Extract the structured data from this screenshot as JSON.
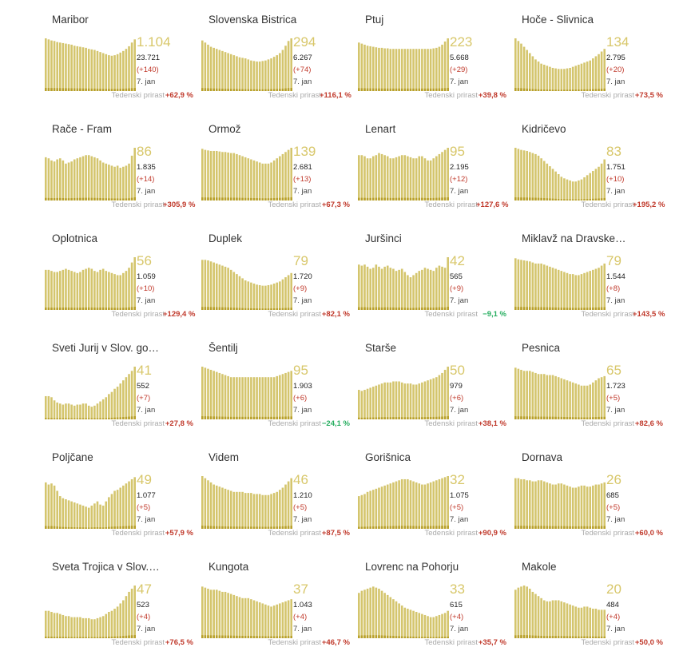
{
  "colors": {
    "bar": "#d4c56d",
    "bar_dark": "#b8a02a",
    "big": "#d8c76a",
    "pos": "#c0392b",
    "neg": "#27ae60"
  },
  "weekly_label": "Tedenski prirast",
  "chart_data": [
    {
      "type": "bar",
      "title": "Maribor",
      "big": "1.104",
      "total": "23.721",
      "delta": "(+140)",
      "date": "7. jan",
      "weekly": "+62,9 %",
      "weekly_sign": "pos",
      "values": [
        100,
        98,
        96,
        95,
        93,
        92,
        91,
        90,
        89,
        88,
        86,
        85,
        84,
        83,
        82,
        80,
        79,
        78,
        76,
        74,
        72,
        70,
        68,
        67,
        68,
        70,
        73,
        76,
        80,
        85,
        92,
        98
      ]
    },
    {
      "type": "bar",
      "title": "Slovenska Bistrica",
      "big": "294",
      "total": "6.267",
      "delta": "(+74)",
      "date": "7. jan",
      "weekly": "+116,1 %",
      "weekly_sign": "pos",
      "values": [
        96,
        92,
        88,
        84,
        82,
        80,
        78,
        76,
        74,
        72,
        70,
        68,
        66,
        64,
        63,
        62,
        60,
        58,
        57,
        56,
        56,
        57,
        58,
        60,
        62,
        65,
        68,
        72,
        78,
        86,
        95,
        100
      ]
    },
    {
      "type": "bar",
      "title": "Ptuj",
      "big": "223",
      "total": "5.668",
      "delta": "(+29)",
      "date": "7. jan",
      "weekly": "+39,8 %",
      "weekly_sign": "pos",
      "values": [
        92,
        90,
        88,
        86,
        85,
        84,
        83,
        82,
        82,
        81,
        81,
        80,
        80,
        80,
        80,
        80,
        80,
        80,
        80,
        80,
        80,
        80,
        80,
        80,
        80,
        80,
        81,
        82,
        84,
        88,
        94,
        100
      ]
    },
    {
      "type": "bar",
      "title": "Hoče - Slivnica",
      "big": "134",
      "total": "2.795",
      "delta": "(+20)",
      "date": "7. jan",
      "weekly": "+73,5 %",
      "weekly_sign": "pos",
      "values": [
        100,
        95,
        90,
        84,
        78,
        72,
        66,
        60,
        56,
        52,
        50,
        48,
        46,
        44,
        43,
        42,
        42,
        42,
        43,
        44,
        46,
        48,
        50,
        52,
        54,
        56,
        58,
        62,
        66,
        70,
        75,
        80
      ]
    },
    {
      "type": "bar",
      "title": "Rače - Fram",
      "big": "86",
      "total": "1.835",
      "delta": "(+14)",
      "date": "7. jan",
      "weekly": "+305,9 %",
      "weekly_sign": "pos",
      "values": [
        82,
        80,
        76,
        74,
        78,
        80,
        76,
        70,
        72,
        74,
        78,
        80,
        82,
        84,
        86,
        86,
        84,
        82,
        80,
        76,
        72,
        70,
        68,
        66,
        64,
        66,
        62,
        64,
        66,
        70,
        85,
        100
      ]
    },
    {
      "type": "bar",
      "title": "Ormož",
      "big": "139",
      "total": "2.681",
      "delta": "(+13)",
      "date": "7. jan",
      "weekly": "+67,3 %",
      "weekly_sign": "pos",
      "values": [
        98,
        96,
        95,
        94,
        94,
        94,
        93,
        92,
        92,
        91,
        90,
        90,
        88,
        86,
        84,
        82,
        80,
        78,
        76,
        74,
        72,
        70,
        70,
        70,
        72,
        76,
        80,
        84,
        88,
        92,
        96,
        100
      ]
    },
    {
      "type": "bar",
      "title": "Lenart",
      "big": "95",
      "total": "2.195",
      "delta": "(+12)",
      "date": "7. jan",
      "weekly": "+127,6 %",
      "weekly_sign": "pos",
      "values": [
        86,
        86,
        84,
        80,
        80,
        84,
        86,
        90,
        88,
        86,
        84,
        80,
        80,
        82,
        84,
        86,
        86,
        84,
        82,
        80,
        80,
        84,
        84,
        80,
        76,
        76,
        80,
        84,
        88,
        92,
        96,
        100
      ]
    },
    {
      "type": "bar",
      "title": "Kidričevo",
      "big": "83",
      "total": "1.751",
      "delta": "(+10)",
      "date": "7. jan",
      "weekly": "+195,2 %",
      "weekly_sign": "pos",
      "values": [
        100,
        98,
        96,
        95,
        94,
        92,
        90,
        88,
        85,
        80,
        75,
        70,
        65,
        60,
        55,
        50,
        45,
        42,
        40,
        38,
        36,
        36,
        38,
        40,
        44,
        48,
        52,
        56,
        60,
        64,
        70,
        78
      ]
    },
    {
      "type": "bar",
      "title": "Oplotnica",
      "big": "56",
      "total": "1.059",
      "delta": "(+10)",
      "date": "7. jan",
      "weekly": "+129,4 %",
      "weekly_sign": "pos",
      "values": [
        76,
        76,
        74,
        72,
        72,
        74,
        76,
        78,
        76,
        74,
        72,
        70,
        72,
        76,
        78,
        80,
        78,
        74,
        72,
        76,
        78,
        74,
        72,
        70,
        68,
        66,
        66,
        70,
        74,
        80,
        90,
        100
      ]
    },
    {
      "type": "bar",
      "title": "Duplek",
      "big": "79",
      "total": "1.720",
      "delta": "(+9)",
      "date": "7. jan",
      "weekly": "+82,1 %",
      "weekly_sign": "pos",
      "values": [
        95,
        95,
        94,
        92,
        90,
        88,
        86,
        84,
        82,
        80,
        76,
        72,
        68,
        64,
        60,
        56,
        54,
        52,
        50,
        48,
        47,
        46,
        46,
        47,
        48,
        50,
        52,
        54,
        58,
        62,
        66,
        70
      ]
    },
    {
      "type": "bar",
      "title": "Juršinci",
      "big": "42",
      "total": "565",
      "delta": "(+9)",
      "date": "7. jan",
      "weekly": "−9,1 %",
      "weekly_sign": "neg",
      "values": [
        86,
        84,
        86,
        82,
        78,
        80,
        86,
        82,
        78,
        82,
        84,
        80,
        78,
        74,
        76,
        78,
        72,
        66,
        62,
        66,
        70,
        74,
        76,
        80,
        78,
        76,
        74,
        80,
        84,
        82,
        80,
        100
      ]
    },
    {
      "type": "bar",
      "title": "Miklavž na Dravske…",
      "big": "79",
      "total": "1.544",
      "delta": "(+8)",
      "date": "7. jan",
      "weekly": "+143,5 %",
      "weekly_sign": "pos",
      "values": [
        98,
        96,
        95,
        94,
        93,
        92,
        90,
        88,
        88,
        88,
        86,
        84,
        82,
        80,
        78,
        76,
        74,
        72,
        70,
        68,
        68,
        66,
        66,
        68,
        70,
        72,
        74,
        76,
        78,
        80,
        84,
        88
      ]
    },
    {
      "type": "bar",
      "title": "Sveti Jurij v Slov. go…",
      "big": "41",
      "total": "552",
      "delta": "(+7)",
      "date": "7. jan",
      "weekly": "+27,8 %",
      "weekly_sign": "pos",
      "values": [
        44,
        44,
        42,
        36,
        32,
        30,
        28,
        30,
        30,
        28,
        26,
        28,
        28,
        30,
        30,
        26,
        24,
        26,
        30,
        34,
        38,
        42,
        48,
        52,
        58,
        62,
        68,
        74,
        80,
        86,
        92,
        100
      ]
    },
    {
      "type": "bar",
      "title": "Šentilj",
      "big": "95",
      "total": "1.903",
      "delta": "(+6)",
      "date": "7. jan",
      "weekly": "−24,1 %",
      "weekly_sign": "neg",
      "values": [
        100,
        98,
        96,
        94,
        92,
        90,
        88,
        86,
        84,
        82,
        80,
        80,
        80,
        80,
        80,
        80,
        80,
        80,
        80,
        80,
        80,
        80,
        80,
        80,
        80,
        80,
        82,
        84,
        86,
        88,
        90,
        92
      ]
    },
    {
      "type": "bar",
      "title": "Starše",
      "big": "50",
      "total": "979",
      "delta": "(+6)",
      "date": "7. jan",
      "weekly": "+38,1 %",
      "weekly_sign": "pos",
      "values": [
        56,
        54,
        56,
        58,
        60,
        62,
        64,
        66,
        68,
        70,
        70,
        70,
        72,
        72,
        72,
        70,
        68,
        68,
        68,
        66,
        66,
        68,
        70,
        72,
        74,
        76,
        78,
        80,
        84,
        88,
        94,
        100
      ]
    },
    {
      "type": "bar",
      "title": "Pesnica",
      "big": "65",
      "total": "1.723",
      "delta": "(+5)",
      "date": "7. jan",
      "weekly": "+82,6 %",
      "weekly_sign": "pos",
      "values": [
        98,
        96,
        94,
        92,
        92,
        92,
        90,
        88,
        86,
        86,
        86,
        84,
        84,
        84,
        82,
        80,
        78,
        76,
        74,
        72,
        70,
        68,
        66,
        64,
        64,
        64,
        66,
        70,
        74,
        78,
        80,
        82
      ]
    },
    {
      "type": "bar",
      "title": "Poljčane",
      "big": "49",
      "total": "1.077",
      "delta": "(+5)",
      "date": "7. jan",
      "weekly": "+57,9 %",
      "weekly_sign": "pos",
      "values": [
        88,
        84,
        86,
        82,
        72,
        62,
        58,
        56,
        54,
        52,
        50,
        48,
        46,
        44,
        42,
        40,
        44,
        48,
        52,
        46,
        44,
        52,
        60,
        66,
        72,
        74,
        78,
        82,
        86,
        90,
        94,
        98
      ]
    },
    {
      "type": "bar",
      "title": "Videm",
      "big": "46",
      "total": "1.210",
      "delta": "(+5)",
      "date": "7. jan",
      "weekly": "+87,5 %",
      "weekly_sign": "pos",
      "values": [
        100,
        96,
        92,
        88,
        84,
        82,
        80,
        78,
        76,
        74,
        72,
        70,
        70,
        70,
        70,
        68,
        68,
        68,
        66,
        66,
        66,
        64,
        64,
        64,
        66,
        68,
        70,
        74,
        78,
        84,
        90,
        96
      ]
    },
    {
      "type": "bar",
      "title": "Gorišnica",
      "big": "32",
      "total": "1.075",
      "delta": "(+5)",
      "date": "7. jan",
      "weekly": "+90,9 %",
      "weekly_sign": "pos",
      "values": [
        62,
        64,
        66,
        70,
        72,
        74,
        76,
        78,
        80,
        82,
        84,
        86,
        88,
        90,
        92,
        94,
        94,
        94,
        92,
        90,
        88,
        86,
        84,
        84,
        86,
        88,
        90,
        92,
        94,
        96,
        98,
        100
      ]
    },
    {
      "type": "bar",
      "title": "Dornava",
      "big": "26",
      "total": "685",
      "delta": "(+5)",
      "date": "7. jan",
      "weekly": "+60,0 %",
      "weekly_sign": "pos",
      "values": [
        96,
        96,
        94,
        94,
        92,
        92,
        90,
        90,
        92,
        92,
        90,
        88,
        86,
        84,
        84,
        86,
        86,
        84,
        82,
        80,
        78,
        78,
        80,
        82,
        82,
        80,
        80,
        82,
        84,
        84,
        86,
        88
      ]
    },
    {
      "type": "bar",
      "title": "Sveta Trojica v Slov.…",
      "big": "47",
      "total": "523",
      "delta": "(+4)",
      "date": "7. jan",
      "weekly": "+76,5 %",
      "weekly_sign": "pos",
      "values": [
        52,
        52,
        50,
        48,
        48,
        46,
        44,
        42,
        42,
        40,
        40,
        40,
        40,
        38,
        38,
        38,
        36,
        36,
        38,
        40,
        42,
        46,
        50,
        52,
        56,
        60,
        66,
        72,
        80,
        88,
        94,
        100
      ]
    },
    {
      "type": "bar",
      "title": "Kungota",
      "big": "37",
      "total": "1.043",
      "delta": "(+4)",
      "date": "7. jan",
      "weekly": "+46,7 %",
      "weekly_sign": "pos",
      "values": [
        98,
        96,
        94,
        92,
        92,
        92,
        90,
        88,
        88,
        86,
        84,
        82,
        80,
        78,
        76,
        76,
        76,
        74,
        72,
        70,
        68,
        66,
        64,
        62,
        60,
        62,
        64,
        66,
        68,
        70,
        72,
        74
      ]
    },
    {
      "type": "bar",
      "title": "Lovrenc na Pohorju",
      "big": "33",
      "total": "615",
      "delta": "(+4)",
      "date": "7. jan",
      "weekly": "+35,7 %",
      "weekly_sign": "pos",
      "values": [
        86,
        90,
        92,
        94,
        96,
        98,
        96,
        94,
        90,
        86,
        82,
        78,
        74,
        70,
        66,
        62,
        58,
        56,
        54,
        52,
        50,
        48,
        46,
        44,
        42,
        40,
        40,
        42,
        44,
        46,
        48,
        52
      ]
    },
    {
      "type": "bar",
      "title": "Makole",
      "big": "20",
      "total": "484",
      "delta": "(+4)",
      "date": "7. jan",
      "weekly": "+50,0 %",
      "weekly_sign": "pos",
      "values": [
        92,
        96,
        98,
        100,
        98,
        94,
        88,
        84,
        80,
        76,
        72,
        70,
        70,
        72,
        72,
        72,
        70,
        68,
        66,
        64,
        62,
        60,
        58,
        58,
        60,
        60,
        58,
        56,
        56,
        54,
        54,
        54
      ]
    }
  ]
}
